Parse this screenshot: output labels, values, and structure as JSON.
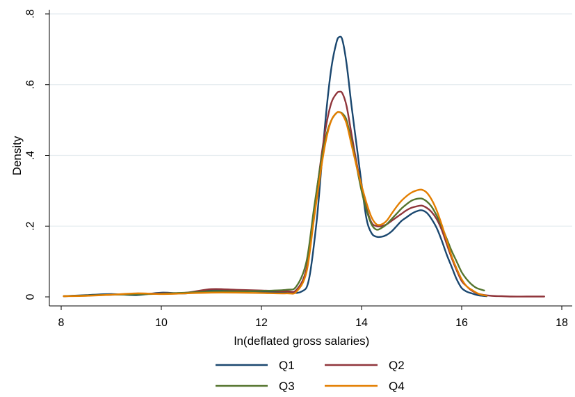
{
  "chart_data": {
    "type": "line",
    "title": "",
    "xlabel": "ln(deflated gross salaries)",
    "ylabel": "Density",
    "xlim": [
      8,
      18
    ],
    "ylim": [
      0,
      0.8
    ],
    "xticks": [
      8,
      10,
      12,
      14,
      16,
      18
    ],
    "xtick_labels": [
      "8",
      "10",
      "12",
      "14",
      "16",
      "18"
    ],
    "yticks": [
      0,
      0.2,
      0.4,
      0.6,
      0.8
    ],
    "ytick_labels": [
      "0",
      ".2",
      ".4",
      ".6",
      ".8"
    ],
    "grid": "horizontal",
    "legend": "bottom",
    "series": [
      {
        "name": "Q1",
        "color": "#1a476f",
        "x": [
          8.05,
          8.5,
          9.0,
          9.5,
          10.0,
          10.5,
          11.0,
          11.5,
          12.0,
          12.5,
          12.8,
          12.95,
          13.1,
          13.2,
          13.3,
          13.4,
          13.5,
          13.56,
          13.62,
          13.7,
          13.8,
          13.9,
          14.0,
          14.1,
          14.2,
          14.3,
          14.4,
          14.5,
          14.6,
          14.7,
          14.8,
          14.9,
          15.0,
          15.1,
          15.2,
          15.3,
          15.4,
          15.5,
          15.6,
          15.7,
          15.8,
          15.9,
          16.0,
          16.1,
          16.2,
          16.35,
          16.5
        ],
        "y": [
          0.002,
          0.005,
          0.008,
          0.005,
          0.012,
          0.01,
          0.02,
          0.018,
          0.015,
          0.012,
          0.015,
          0.05,
          0.21,
          0.37,
          0.53,
          0.65,
          0.72,
          0.735,
          0.725,
          0.66,
          0.54,
          0.43,
          0.32,
          0.22,
          0.18,
          0.17,
          0.17,
          0.175,
          0.185,
          0.2,
          0.215,
          0.225,
          0.235,
          0.242,
          0.245,
          0.238,
          0.22,
          0.195,
          0.16,
          0.12,
          0.085,
          0.05,
          0.025,
          0.015,
          0.01,
          0.004,
          0.002
        ]
      },
      {
        "name": "Q2",
        "color": "#90353b",
        "x": [
          8.05,
          8.5,
          9.0,
          9.5,
          10.0,
          10.5,
          11.0,
          11.5,
          12.0,
          12.5,
          12.7,
          12.9,
          13.05,
          13.2,
          13.3,
          13.4,
          13.5,
          13.56,
          13.62,
          13.7,
          13.8,
          13.9,
          14.0,
          14.1,
          14.2,
          14.3,
          14.4,
          14.5,
          14.6,
          14.7,
          14.8,
          14.9,
          15.0,
          15.1,
          15.2,
          15.3,
          15.4,
          15.5,
          15.6,
          15.7,
          15.8,
          15.9,
          16.0,
          16.1,
          16.2,
          16.35,
          16.6,
          16.8,
          17.0,
          17.3,
          17.65
        ],
        "y": [
          0.002,
          0.004,
          0.006,
          0.008,
          0.01,
          0.012,
          0.022,
          0.02,
          0.018,
          0.016,
          0.02,
          0.08,
          0.24,
          0.4,
          0.49,
          0.55,
          0.575,
          0.58,
          0.575,
          0.54,
          0.46,
          0.38,
          0.31,
          0.25,
          0.21,
          0.2,
          0.2,
          0.205,
          0.215,
          0.225,
          0.235,
          0.245,
          0.252,
          0.256,
          0.258,
          0.252,
          0.24,
          0.22,
          0.19,
          0.15,
          0.11,
          0.075,
          0.045,
          0.03,
          0.018,
          0.008,
          0.003,
          0.002,
          0.001,
          0.001,
          0.001
        ]
      },
      {
        "name": "Q3",
        "color": "#55752f",
        "x": [
          8.05,
          8.5,
          9.0,
          9.5,
          10.0,
          10.5,
          11.0,
          11.5,
          12.0,
          12.5,
          12.7,
          12.9,
          13.05,
          13.2,
          13.3,
          13.4,
          13.5,
          13.56,
          13.62,
          13.7,
          13.8,
          13.9,
          14.0,
          14.1,
          14.2,
          14.3,
          14.4,
          14.5,
          14.6,
          14.7,
          14.8,
          14.9,
          15.0,
          15.1,
          15.2,
          15.3,
          15.4,
          15.5,
          15.6,
          15.7,
          15.8,
          15.9,
          16.0,
          16.1,
          16.2,
          16.3,
          16.45
        ],
        "y": [
          0.002,
          0.004,
          0.006,
          0.007,
          0.009,
          0.012,
          0.016,
          0.016,
          0.017,
          0.02,
          0.03,
          0.1,
          0.25,
          0.39,
          0.46,
          0.5,
          0.52,
          0.522,
          0.518,
          0.5,
          0.44,
          0.37,
          0.3,
          0.245,
          0.205,
          0.19,
          0.195,
          0.205,
          0.22,
          0.235,
          0.25,
          0.262,
          0.272,
          0.277,
          0.278,
          0.27,
          0.255,
          0.23,
          0.2,
          0.165,
          0.13,
          0.1,
          0.07,
          0.05,
          0.035,
          0.025,
          0.018
        ]
      },
      {
        "name": "Q4",
        "color": "#e37e00",
        "x": [
          8.05,
          8.5,
          9.0,
          9.5,
          10.0,
          10.5,
          11.0,
          11.5,
          12.0,
          12.5,
          12.7,
          12.9,
          13.05,
          13.2,
          13.3,
          13.4,
          13.5,
          13.56,
          13.62,
          13.7,
          13.8,
          13.9,
          14.0,
          14.1,
          14.2,
          14.3,
          14.4,
          14.5,
          14.6,
          14.7,
          14.8,
          14.9,
          15.0,
          15.1,
          15.2,
          15.3,
          15.4,
          15.5,
          15.6,
          15.7,
          15.8,
          15.9,
          16.0,
          16.1,
          16.2,
          16.35,
          16.5
        ],
        "y": [
          0.002,
          0.003,
          0.006,
          0.01,
          0.008,
          0.01,
          0.012,
          0.012,
          0.011,
          0.01,
          0.015,
          0.07,
          0.22,
          0.37,
          0.45,
          0.5,
          0.52,
          0.522,
          0.515,
          0.49,
          0.43,
          0.37,
          0.315,
          0.265,
          0.225,
          0.205,
          0.205,
          0.215,
          0.235,
          0.255,
          0.272,
          0.285,
          0.295,
          0.301,
          0.303,
          0.295,
          0.275,
          0.245,
          0.205,
          0.16,
          0.115,
          0.08,
          0.05,
          0.03,
          0.02,
          0.008,
          0.003
        ]
      }
    ]
  }
}
